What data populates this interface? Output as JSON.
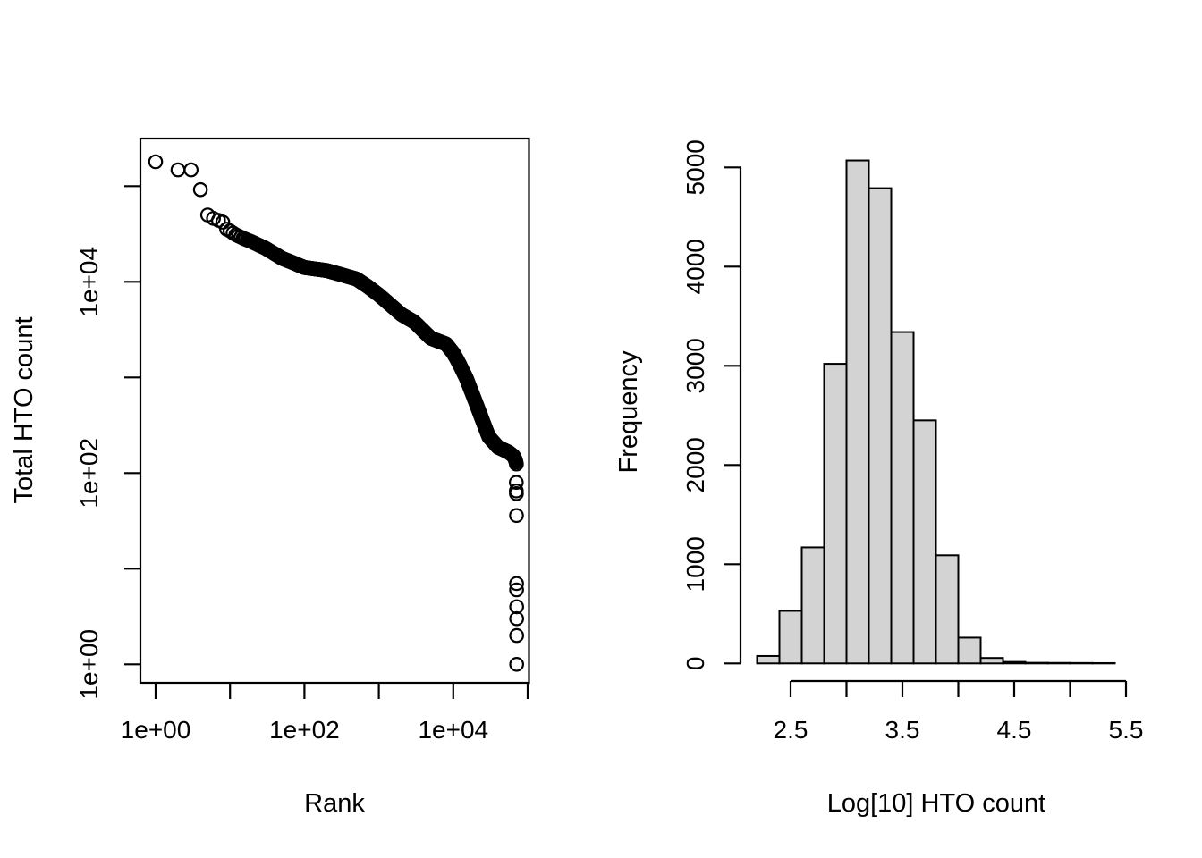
{
  "figure": {
    "background": "#ffffff",
    "stroke_color": "#000000",
    "bar_fill": "#d3d3d3"
  },
  "chart_data": [
    {
      "name": "hto-rank-knee-plot",
      "type": "scatter",
      "marker": "open-circle",
      "x_scale": "log10",
      "y_scale": "log10",
      "xlabel": "Rank",
      "ylabel": "Total HTO count",
      "xlim": [
        0.62,
        110000
      ],
      "ylim": [
        1,
        320000
      ],
      "x_ticks": [
        1,
        10,
        100,
        1000,
        10000,
        100000
      ],
      "x_tick_labels": [
        "1e+00",
        "",
        "1e+02",
        "",
        "1e+04",
        ""
      ],
      "y_ticks": [
        1,
        10,
        100,
        1000,
        10000,
        100000
      ],
      "y_tick_labels": [
        "1e+00",
        "",
        "1e+02",
        "",
        "1e+04",
        ""
      ],
      "grid": false,
      "legend": false,
      "head_points": [
        [
          1,
          180000
        ],
        [
          2,
          148000
        ],
        [
          3,
          148000
        ],
        [
          4,
          92000
        ],
        [
          5,
          50000
        ],
        [
          6,
          46000
        ],
        [
          7,
          44000
        ],
        [
          8,
          42000
        ]
      ],
      "band_knots": [
        [
          9,
          35500
        ],
        [
          10,
          34000
        ],
        [
          12,
          31000
        ],
        [
          15,
          28500
        ],
        [
          20,
          26000
        ],
        [
          30,
          22400
        ],
        [
          50,
          17600
        ],
        [
          70,
          15850
        ],
        [
          100,
          14100
        ],
        [
          200,
          13100
        ],
        [
          300,
          12000
        ],
        [
          500,
          10700
        ],
        [
          700,
          9000
        ],
        [
          1000,
          7300
        ],
        [
          2000,
          4570
        ],
        [
          3000,
          3800
        ],
        [
          5000,
          2570
        ],
        [
          8000,
          2240
        ],
        [
          10000,
          1800
        ],
        [
          12000,
          1400
        ],
        [
          15000,
          980
        ],
        [
          20000,
          550
        ],
        [
          25000,
          347
        ],
        [
          30000,
          240
        ],
        [
          40000,
          186
        ],
        [
          55000,
          166
        ],
        [
          65000,
          150
        ],
        [
          69000,
          135
        ],
        [
          71000,
          122
        ]
      ],
      "outlier_points": [
        [
          70300,
          80
        ],
        [
          70450,
          65
        ],
        [
          70550,
          61
        ],
        [
          70800,
          36
        ],
        [
          70900,
          7
        ],
        [
          70950,
          6
        ],
        [
          71050,
          4
        ],
        [
          71100,
          3
        ],
        [
          71150,
          2
        ],
        [
          71200,
          1
        ]
      ],
      "note": "dense band of ~71000 overlapping open circles along band_knots"
    },
    {
      "name": "hto-log10-histogram",
      "type": "bar",
      "xlabel": "Log[10] HTO count",
      "ylabel": "Frequency",
      "bin_start": 2.2,
      "bin_width": 0.2,
      "bin_edges": [
        2.2,
        2.4,
        2.6,
        2.8,
        3.0,
        3.2,
        3.4,
        3.6,
        3.8,
        4.0,
        4.2,
        4.4,
        4.6,
        4.8,
        5.0,
        5.2,
        5.4
      ],
      "frequencies": [
        75,
        530,
        1170,
        3020,
        5070,
        4790,
        3340,
        2450,
        1090,
        260,
        55,
        15,
        6,
        5,
        4,
        3
      ],
      "x_ticks": [
        2.5,
        3.0,
        3.5,
        4.0,
        4.5,
        5.0,
        5.5
      ],
      "x_tick_labels": [
        "2.5",
        "",
        "3.5",
        "",
        "4.5",
        "",
        "5.5"
      ],
      "y_ticks": [
        0,
        1000,
        2000,
        3000,
        4000,
        5000
      ],
      "y_tick_labels": [
        "0",
        "1000",
        "2000",
        "3000",
        "4000",
        "5000"
      ],
      "ylim": [
        0,
        5070
      ],
      "grid": false,
      "legend": false
    }
  ]
}
